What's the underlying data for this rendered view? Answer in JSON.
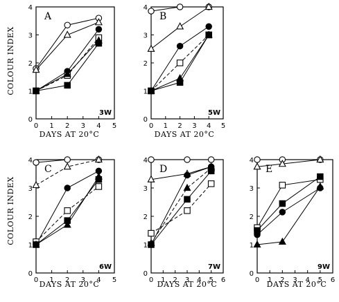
{
  "y_axis_label": "COLOUR  INDEX",
  "x_axis_label": "DAYS AT 20°C",
  "chart_data": [
    {
      "type": "line",
      "panel": "A",
      "age": "3W",
      "xlim": [
        0,
        5
      ],
      "ylim": [
        0,
        4
      ],
      "xticks": [
        "0",
        "1",
        "2",
        "3",
        "4",
        "5"
      ],
      "yticks": [
        "0",
        "1",
        "2",
        "3",
        "4"
      ],
      "series": [
        {
          "marker": "circle-open",
          "dashed": false,
          "x": [
            0,
            2,
            4
          ],
          "y": [
            1.8,
            3.35,
            3.6
          ]
        },
        {
          "marker": "triangle-open",
          "dashed": false,
          "x": [
            0,
            2,
            4
          ],
          "y": [
            1.75,
            3.0,
            3.45
          ]
        },
        {
          "marker": "circle-filled",
          "dashed": false,
          "x": [
            0,
            2,
            4
          ],
          "y": [
            1.0,
            1.7,
            3.2
          ]
        },
        {
          "marker": "square-open",
          "dashed": true,
          "x": [
            0,
            2,
            4
          ],
          "y": [
            1.0,
            1.55,
            2.9
          ]
        },
        {
          "marker": "triangle-filled",
          "dashed": false,
          "x": [
            0,
            2,
            4
          ],
          "y": [
            1.0,
            1.6,
            2.8
          ]
        },
        {
          "marker": "square-filled",
          "dashed": false,
          "x": [
            0,
            2,
            4
          ],
          "y": [
            1.0,
            1.2,
            2.7
          ]
        }
      ]
    },
    {
      "type": "line",
      "panel": "B",
      "age": "5W",
      "xlim": [
        0,
        5
      ],
      "ylim": [
        0,
        4
      ],
      "xticks": [
        "0",
        "1",
        "2",
        "3",
        "4",
        "5"
      ],
      "yticks": [
        "0",
        "1",
        "2",
        "3",
        "4"
      ],
      "series": [
        {
          "marker": "circle-open",
          "dashed": false,
          "x": [
            0,
            2,
            4
          ],
          "y": [
            3.85,
            4.0,
            4.0
          ]
        },
        {
          "marker": "triangle-open",
          "dashed": false,
          "x": [
            0,
            2,
            4
          ],
          "y": [
            2.5,
            3.3,
            4.0
          ]
        },
        {
          "marker": "circle-filled",
          "dashed": false,
          "x": [
            0,
            2,
            4
          ],
          "y": [
            1.0,
            2.6,
            3.3
          ]
        },
        {
          "marker": "square-open",
          "dashed": true,
          "x": [
            0,
            2,
            4
          ],
          "y": [
            1.0,
            2.0,
            3.0
          ]
        },
        {
          "marker": "triangle-filled",
          "dashed": false,
          "x": [
            0,
            2,
            4
          ],
          "y": [
            1.0,
            1.45,
            3.0
          ]
        },
        {
          "marker": "square-filled",
          "dashed": false,
          "x": [
            0,
            2,
            4
          ],
          "y": [
            1.0,
            1.3,
            3.0
          ]
        }
      ]
    },
    {
      "type": "line",
      "panel": "C",
      "age": "6W",
      "xlim": [
        0,
        5
      ],
      "ylim": [
        0,
        4
      ],
      "xticks": [
        "0",
        "1",
        "2",
        "3",
        "4",
        "5"
      ],
      "yticks": [
        "0",
        "1",
        "2",
        "3",
        "4"
      ],
      "series": [
        {
          "marker": "circle-open",
          "dashed": false,
          "x": [
            0,
            2,
            4
          ],
          "y": [
            3.9,
            4.0,
            4.0
          ]
        },
        {
          "marker": "triangle-open",
          "dashed": true,
          "x": [
            0,
            2,
            4
          ],
          "y": [
            3.1,
            3.75,
            4.0
          ]
        },
        {
          "marker": "circle-filled",
          "dashed": false,
          "x": [
            0,
            2,
            4
          ],
          "y": [
            1.0,
            3.0,
            3.6
          ]
        },
        {
          "marker": "square-open",
          "dashed": true,
          "x": [
            0,
            2,
            4
          ],
          "y": [
            1.1,
            2.2,
            3.05
          ]
        },
        {
          "marker": "square-filled",
          "dashed": false,
          "x": [
            0,
            2,
            4
          ],
          "y": [
            1.0,
            1.85,
            3.3
          ]
        },
        {
          "marker": "triangle-filled",
          "dashed": false,
          "x": [
            0,
            2,
            4
          ],
          "y": [
            1.0,
            1.7,
            3.4
          ]
        }
      ]
    },
    {
      "type": "line",
      "panel": "D",
      "age": "7W",
      "xlim": [
        0,
        6
      ],
      "ylim": [
        0,
        4
      ],
      "xticks": [
        "0",
        "1",
        "2",
        "3",
        "4",
        "5",
        "6"
      ],
      "yticks": [
        "0",
        "1",
        "2",
        "3",
        "4"
      ],
      "series": [
        {
          "marker": "circle-open",
          "dashed": false,
          "x": [
            0,
            3,
            5
          ],
          "y": [
            4.0,
            4.0,
            4.0
          ]
        },
        {
          "marker": "triangle-open",
          "dashed": false,
          "x": [
            0,
            3,
            5
          ],
          "y": [
            3.3,
            3.5,
            3.75
          ]
        },
        {
          "marker": "circle-filled",
          "dashed": false,
          "x": [
            0,
            3,
            5
          ],
          "y": [
            1.0,
            3.45,
            3.75
          ]
        },
        {
          "marker": "triangle-filled",
          "dashed": true,
          "x": [
            0,
            3,
            5
          ],
          "y": [
            1.05,
            3.0,
            3.7
          ]
        },
        {
          "marker": "square-filled",
          "dashed": false,
          "x": [
            0,
            3,
            5
          ],
          "y": [
            1.0,
            2.6,
            3.6
          ]
        },
        {
          "marker": "square-open",
          "dashed": true,
          "x": [
            0,
            3,
            5
          ],
          "y": [
            1.4,
            2.2,
            3.15
          ]
        }
      ]
    },
    {
      "type": "line",
      "panel": "E",
      "age": "9W",
      "xlim": [
        0,
        6
      ],
      "ylim": [
        0,
        4
      ],
      "xticks": [
        "0",
        "1",
        "2",
        "3",
        "4",
        "5",
        "6"
      ],
      "yticks": [
        "0",
        "1",
        "2",
        "3",
        "4"
      ],
      "series": [
        {
          "marker": "circle-open",
          "dashed": false,
          "x": [
            0,
            2,
            5
          ],
          "y": [
            4.0,
            4.0,
            4.0
          ]
        },
        {
          "marker": "triangle-open",
          "dashed": false,
          "x": [
            0,
            2,
            5
          ],
          "y": [
            3.75,
            3.85,
            4.0
          ]
        },
        {
          "marker": "square-open",
          "dashed": false,
          "x": [
            0,
            2,
            5
          ],
          "y": [
            1.6,
            3.1,
            3.3
          ]
        },
        {
          "marker": "square-filled",
          "dashed": false,
          "x": [
            0,
            2,
            5
          ],
          "y": [
            1.5,
            2.45,
            3.4
          ]
        },
        {
          "marker": "circle-filled",
          "dashed": false,
          "x": [
            0,
            2,
            5
          ],
          "y": [
            1.35,
            2.15,
            3.0
          ]
        },
        {
          "marker": "triangle-filled",
          "dashed": false,
          "x": [
            0,
            2,
            5
          ],
          "y": [
            1.0,
            1.1,
            3.05
          ]
        }
      ]
    }
  ]
}
